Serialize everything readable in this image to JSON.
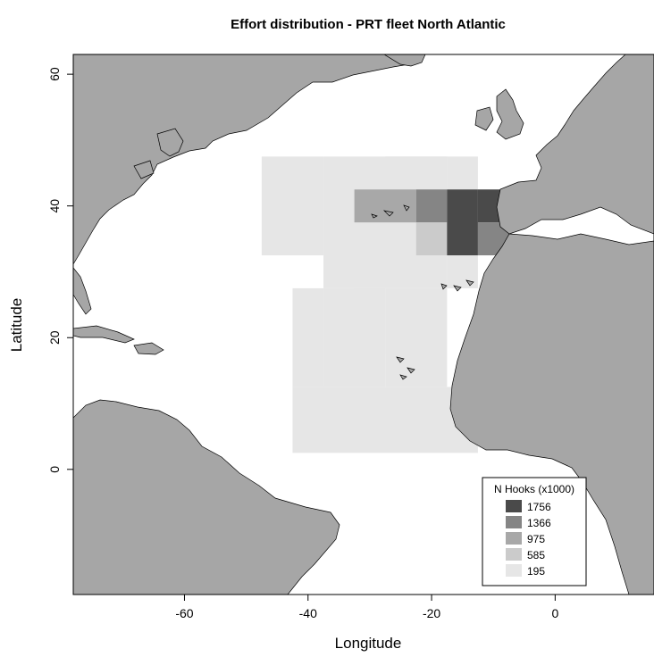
{
  "map": {
    "title": "Effort distribution - PRT fleet North Atlantic",
    "xlabel": "Longitude",
    "ylabel": "Latitude",
    "xlim": [
      -78,
      16
    ],
    "ylim": [
      -19,
      63
    ],
    "x_ticks": [
      -60,
      -40,
      -20,
      0
    ],
    "y_ticks": [
      0,
      20,
      40,
      60
    ],
    "x_tick_labels": [
      "-60",
      "-40",
      "-20",
      "0"
    ],
    "y_tick_labels": [
      "0",
      "20",
      "40",
      "60"
    ],
    "land_color": "#a6a6a6",
    "coast_color": "#000000",
    "cell_size_deg": 5
  },
  "legend": {
    "title": "N Hooks (x1000)",
    "position": "bottom-right",
    "entries": [
      {
        "label": "1756",
        "color": "#4a4a4a"
      },
      {
        "label": "1366",
        "color": "#858585"
      },
      {
        "label": "975",
        "color": "#a8a8a8"
      },
      {
        "label": "585",
        "color": "#cbcbcb"
      },
      {
        "label": "195",
        "color": "#e6e6e6"
      }
    ]
  },
  "chart_data": {
    "type": "heatmap",
    "value_unit": "N Hooks (x1000)",
    "cells": [
      {
        "lon": -47.5,
        "lat": 32.5,
        "w": 10,
        "h": 15,
        "value": 195
      },
      {
        "lon": -37.5,
        "lat": 27.5,
        "w": 20,
        "h": 20,
        "value": 195
      },
      {
        "lon": -27.5,
        "lat": 42.5,
        "w": 5,
        "h": 5,
        "value": 195
      },
      {
        "lon": -22.5,
        "lat": 42.5,
        "w": 5,
        "h": 5,
        "value": 195
      },
      {
        "lon": -17.5,
        "lat": 42.5,
        "w": 5,
        "h": 5,
        "value": 195
      },
      {
        "lon": -42.5,
        "lat": 12.5,
        "w": 5,
        "h": 15,
        "value": 195
      },
      {
        "lon": -32.5,
        "lat": 17.5,
        "w": 5,
        "h": 10,
        "value": 195
      },
      {
        "lon": -42.5,
        "lat": 2.5,
        "w": 30,
        "h": 10,
        "value": 195
      },
      {
        "lon": -37.5,
        "lat": 12.5,
        "w": 10,
        "h": 15,
        "value": 195
      },
      {
        "lon": -27.5,
        "lat": 12.5,
        "w": 10,
        "h": 15,
        "value": 195
      },
      {
        "lon": -17.5,
        "lat": 7.5,
        "w": 5,
        "h": 5,
        "value": 195
      },
      {
        "lon": -17.5,
        "lat": 27.5,
        "w": 5,
        "h": 5,
        "value": 195
      },
      {
        "lon": -32.5,
        "lat": 37.5,
        "w": 10,
        "h": 5,
        "value": 975
      },
      {
        "lon": -22.5,
        "lat": 37.5,
        "w": 5,
        "h": 5,
        "value": 1366
      },
      {
        "lon": -22.5,
        "lat": 32.5,
        "w": 5,
        "h": 5,
        "value": 585
      },
      {
        "lon": -17.5,
        "lat": 32.5,
        "w": 5,
        "h": 10,
        "value": 1756
      },
      {
        "lon": -12.5,
        "lat": 37.5,
        "w": 5,
        "h": 5,
        "value": 1756
      },
      {
        "lon": -12.5,
        "lat": 32.5,
        "w": 5,
        "h": 5,
        "value": 1366
      },
      {
        "lon": -7.5,
        "lat": 37.5,
        "w": 1,
        "h": 5,
        "value": 1756
      }
    ]
  }
}
